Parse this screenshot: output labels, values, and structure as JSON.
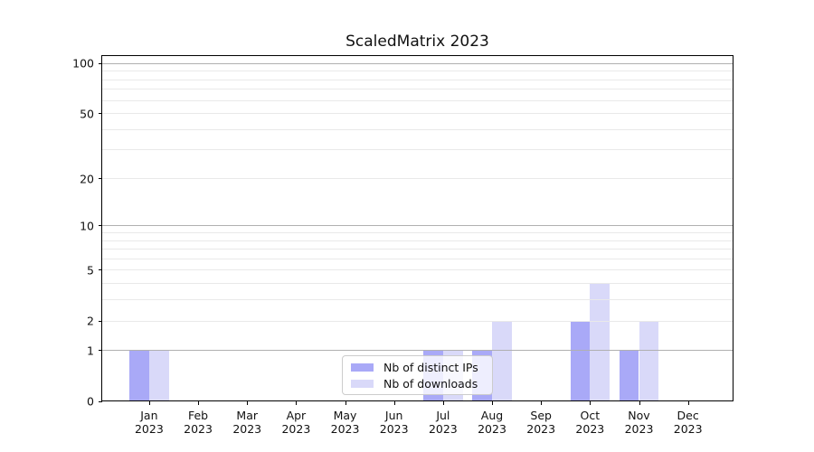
{
  "chart_data": {
    "type": "bar",
    "title": "ScaledMatrix 2023",
    "xlabel": "",
    "ylabel": "",
    "year_label": "2023",
    "categories": [
      "Jan",
      "Feb",
      "Mar",
      "Apr",
      "May",
      "Jun",
      "Jul",
      "Aug",
      "Sep",
      "Oct",
      "Nov",
      "Dec"
    ],
    "series": [
      {
        "name": "Nb of distinct IPs",
        "color": "#a9a9f7",
        "values": [
          1,
          0,
          0,
          0,
          0,
          0,
          1,
          1,
          0,
          2,
          1,
          0
        ]
      },
      {
        "name": "Nb of downloads",
        "color": "#d9d9f9",
        "values": [
          1,
          0,
          0,
          0,
          0,
          0,
          1,
          2,
          0,
          4,
          2,
          0
        ]
      }
    ],
    "yscale": "log1p",
    "ylim": [
      0,
      112.4
    ],
    "y_major_ticks": [
      0,
      1,
      2,
      5,
      10,
      20,
      50,
      100
    ],
    "y_major_gridlines": [
      1,
      10,
      100
    ],
    "y_minor_gridlines": [
      2,
      3,
      4,
      5,
      6,
      7,
      8,
      9,
      20,
      30,
      40,
      50,
      60,
      70,
      80,
      90
    ],
    "grid": "on",
    "legend_position": "lower center",
    "colors": {
      "major_grid": "#b0b0b0",
      "minor_grid": "#e9e9e9",
      "spine": "#000000",
      "text": "#111111"
    }
  }
}
